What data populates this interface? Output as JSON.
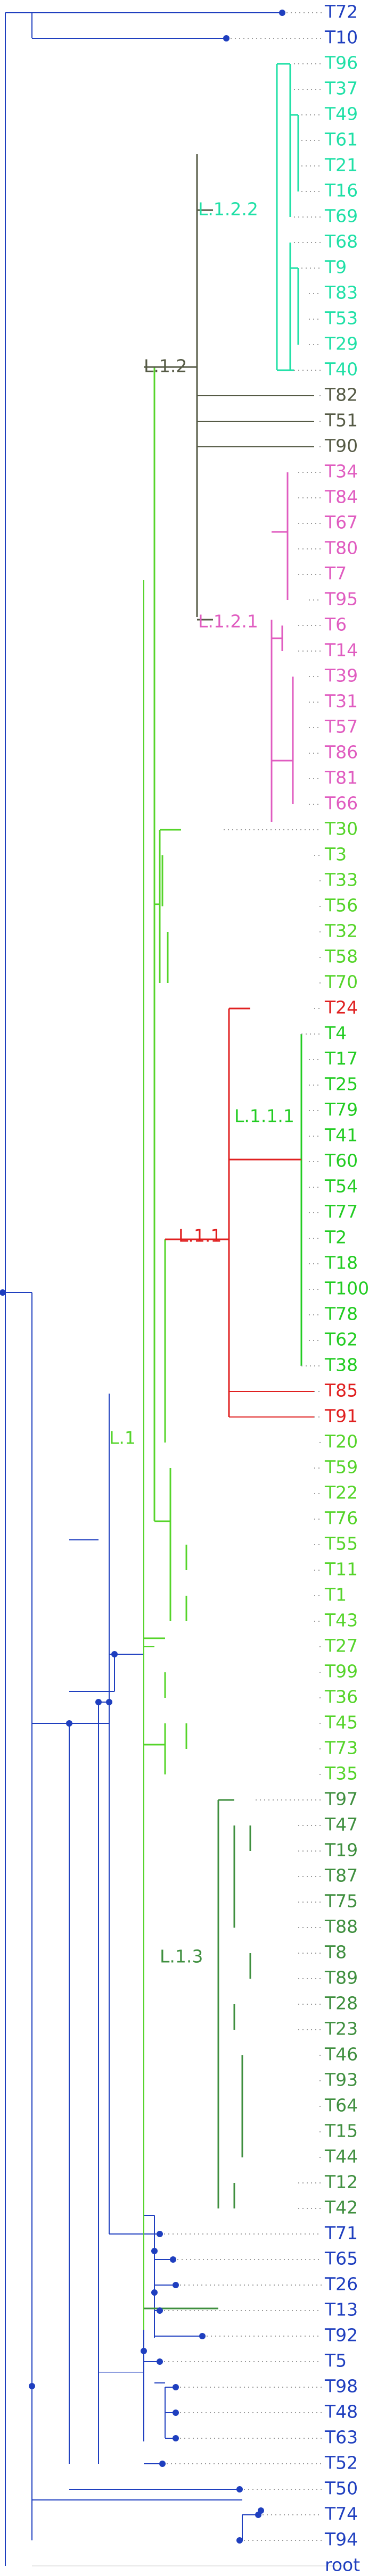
{
  "tips": [
    {
      "label": "T72",
      "color": "#1f3fbf"
    },
    {
      "label": "T10",
      "color": "#1f3fbf"
    },
    {
      "label": "T96",
      "color": "#1fe0a6"
    },
    {
      "label": "T37",
      "color": "#1fe0a6"
    },
    {
      "label": "T49",
      "color": "#1fe0a6"
    },
    {
      "label": "T61",
      "color": "#1fe0a6"
    },
    {
      "label": "T21",
      "color": "#1fe0a6"
    },
    {
      "label": "T16",
      "color": "#1fe0a6"
    },
    {
      "label": "T69",
      "color": "#1fe0a6"
    },
    {
      "label": "T68",
      "color": "#1fe0a6"
    },
    {
      "label": "T9",
      "color": "#1fe0a6"
    },
    {
      "label": "T83",
      "color": "#1fe0a6"
    },
    {
      "label": "T53",
      "color": "#1fe0a6"
    },
    {
      "label": "T29",
      "color": "#1fe0a6"
    },
    {
      "label": "T40",
      "color": "#1fe0a6"
    },
    {
      "label": "T82",
      "color": "#555a45"
    },
    {
      "label": "T51",
      "color": "#555a45"
    },
    {
      "label": "T90",
      "color": "#555a45"
    },
    {
      "label": "T34",
      "color": "#e05cc0"
    },
    {
      "label": "T84",
      "color": "#e05cc0"
    },
    {
      "label": "T67",
      "color": "#e05cc0"
    },
    {
      "label": "T80",
      "color": "#e05cc0"
    },
    {
      "label": "T7",
      "color": "#e05cc0"
    },
    {
      "label": "T95",
      "color": "#e05cc0"
    },
    {
      "label": "T6",
      "color": "#e05cc0"
    },
    {
      "label": "T14",
      "color": "#e05cc0"
    },
    {
      "label": "T39",
      "color": "#e05cc0"
    },
    {
      "label": "T31",
      "color": "#e05cc0"
    },
    {
      "label": "T57",
      "color": "#e05cc0"
    },
    {
      "label": "T86",
      "color": "#e05cc0"
    },
    {
      "label": "T81",
      "color": "#e05cc0"
    },
    {
      "label": "T66",
      "color": "#e05cc0"
    },
    {
      "label": "T30",
      "color": "#55d42a"
    },
    {
      "label": "T3",
      "color": "#55d42a"
    },
    {
      "label": "T33",
      "color": "#55d42a"
    },
    {
      "label": "T56",
      "color": "#55d42a"
    },
    {
      "label": "T32",
      "color": "#55d42a"
    },
    {
      "label": "T58",
      "color": "#55d42a"
    },
    {
      "label": "T70",
      "color": "#55d42a"
    },
    {
      "label": "T24",
      "color": "#e02020"
    },
    {
      "label": "T4",
      "color": "#22cc22"
    },
    {
      "label": "T17",
      "color": "#22cc22"
    },
    {
      "label": "T25",
      "color": "#22cc22"
    },
    {
      "label": "T79",
      "color": "#22cc22"
    },
    {
      "label": "T41",
      "color": "#22cc22"
    },
    {
      "label": "T60",
      "color": "#22cc22"
    },
    {
      "label": "T54",
      "color": "#22cc22"
    },
    {
      "label": "T77",
      "color": "#22cc22"
    },
    {
      "label": "T2",
      "color": "#22cc22"
    },
    {
      "label": "T18",
      "color": "#22cc22"
    },
    {
      "label": "T100",
      "color": "#22cc22"
    },
    {
      "label": "T78",
      "color": "#22cc22"
    },
    {
      "label": "T62",
      "color": "#22cc22"
    },
    {
      "label": "T38",
      "color": "#22cc22"
    },
    {
      "label": "T85",
      "color": "#e02020"
    },
    {
      "label": "T91",
      "color": "#e02020"
    },
    {
      "label": "T20",
      "color": "#55d42a"
    },
    {
      "label": "T59",
      "color": "#55d42a"
    },
    {
      "label": "T22",
      "color": "#55d42a"
    },
    {
      "label": "T76",
      "color": "#55d42a"
    },
    {
      "label": "T55",
      "color": "#55d42a"
    },
    {
      "label": "T11",
      "color": "#55d42a"
    },
    {
      "label": "T1",
      "color": "#55d42a"
    },
    {
      "label": "T43",
      "color": "#55d42a"
    },
    {
      "label": "T27",
      "color": "#55d42a"
    },
    {
      "label": "T99",
      "color": "#55d42a"
    },
    {
      "label": "T36",
      "color": "#55d42a"
    },
    {
      "label": "T45",
      "color": "#55d42a"
    },
    {
      "label": "T73",
      "color": "#55d42a"
    },
    {
      "label": "T35",
      "color": "#55d42a"
    },
    {
      "label": "T97",
      "color": "#3f8f3f"
    },
    {
      "label": "T47",
      "color": "#3f8f3f"
    },
    {
      "label": "T19",
      "color": "#3f8f3f"
    },
    {
      "label": "T87",
      "color": "#3f8f3f"
    },
    {
      "label": "T75",
      "color": "#3f8f3f"
    },
    {
      "label": "T88",
      "color": "#3f8f3f"
    },
    {
      "label": "T8",
      "color": "#3f8f3f"
    },
    {
      "label": "T89",
      "color": "#3f8f3f"
    },
    {
      "label": "T28",
      "color": "#3f8f3f"
    },
    {
      "label": "T23",
      "color": "#3f8f3f"
    },
    {
      "label": "T46",
      "color": "#3f8f3f"
    },
    {
      "label": "T93",
      "color": "#3f8f3f"
    },
    {
      "label": "T64",
      "color": "#3f8f3f"
    },
    {
      "label": "T15",
      "color": "#3f8f3f"
    },
    {
      "label": "T44",
      "color": "#3f8f3f"
    },
    {
      "label": "T12",
      "color": "#3f8f3f"
    },
    {
      "label": "T42",
      "color": "#3f8f3f"
    },
    {
      "label": "T71",
      "color": "#1f3fbf"
    },
    {
      "label": "T65",
      "color": "#1f3fbf"
    },
    {
      "label": "T26",
      "color": "#1f3fbf"
    },
    {
      "label": "T13",
      "color": "#1f3fbf"
    },
    {
      "label": "T92",
      "color": "#1f3fbf"
    },
    {
      "label": "T5",
      "color": "#1f3fbf"
    },
    {
      "label": "T98",
      "color": "#1f3fbf"
    },
    {
      "label": "T48",
      "color": "#1f3fbf"
    },
    {
      "label": "T63",
      "color": "#1f3fbf"
    },
    {
      "label": "T52",
      "color": "#1f3fbf"
    },
    {
      "label": "T50",
      "color": "#1f3fbf"
    },
    {
      "label": "T74",
      "color": "#1f3fbf"
    },
    {
      "label": "T94",
      "color": "#1f3fbf"
    },
    {
      "label": "root",
      "color": "#1f3fbf"
    }
  ],
  "clades": [
    {
      "label": "L.1.2.2",
      "color": "#1fe0a6"
    },
    {
      "label": "L.1.2",
      "color": "#555a45"
    },
    {
      "label": "L.1.2.1",
      "color": "#e05cc0"
    },
    {
      "label": "L.1.1.1",
      "color": "#22cc22"
    },
    {
      "label": "L.1.1",
      "color": "#e02020"
    },
    {
      "label": "L.1",
      "color": "#55d42a"
    },
    {
      "label": "L.1.3",
      "color": "#3f8f3f"
    }
  ],
  "colors": {
    "background": "#ffffff",
    "base_tree": "#1f3fbf",
    "L.1": "#55d42a",
    "L.1.1": "#e02020",
    "L.1.1.1": "#22cc22",
    "L.1.2": "#555a45",
    "L.1.2.1": "#e05cc0",
    "L.1.2.2": "#1fe0a6",
    "L.1.3": "#3f8f3f",
    "leader_line": "#999999",
    "node_dot": "#1f3fbf"
  }
}
